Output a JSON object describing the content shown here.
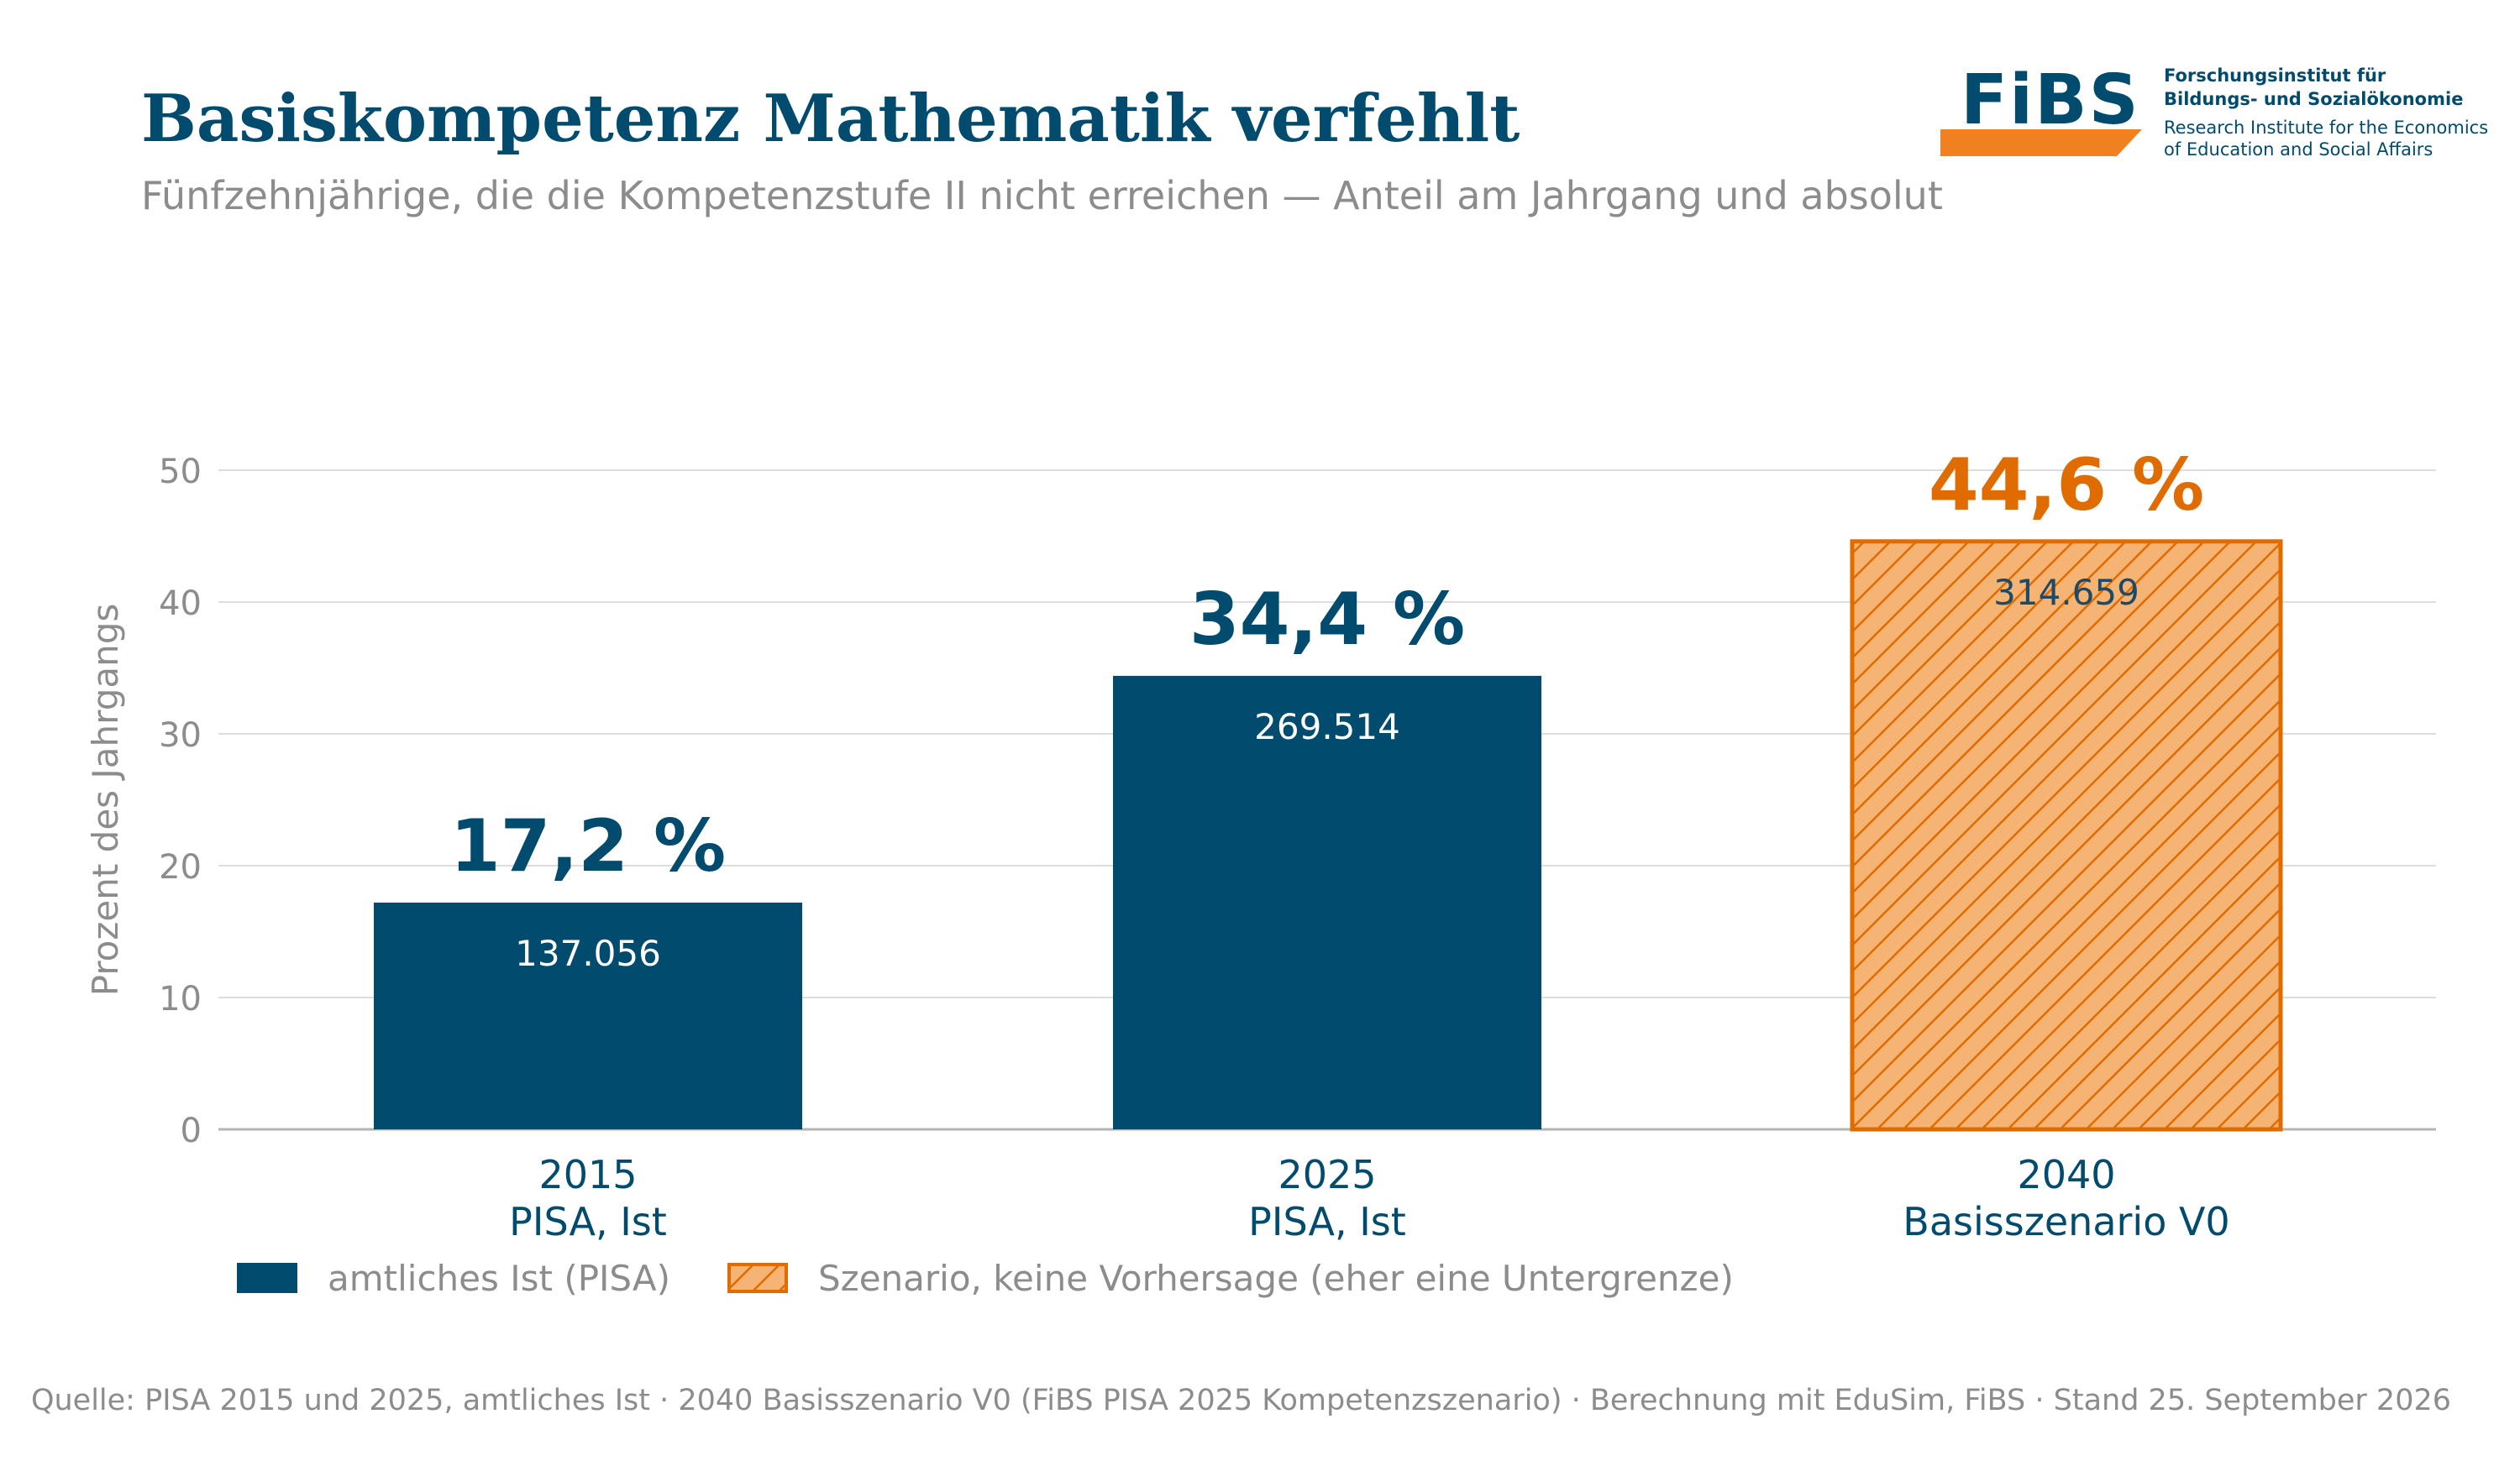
{
  "header": {
    "title": "Basiskompetenz Mathematik verfehlt",
    "subtitle": "Fünfzehnjährige, die die Kompetenzstufe II nicht erreichen — Anteil am Jahrgang und absolut"
  },
  "logo": {
    "wordmark": "FiBS",
    "line1": "Forschungsinstitut für",
    "line2": "Bildungs- und Sozialökonomie",
    "line3": "Research Institute for the Economics",
    "line4": "of Education and Social Affairs",
    "accent_color": "#f08020"
  },
  "chart_data": {
    "type": "bar",
    "ylabel": "Prozent des Jahrgangs",
    "ylim": [
      0,
      50
    ],
    "yticks": [
      0,
      10,
      20,
      30,
      40,
      50
    ],
    "grid": true,
    "categories": [
      {
        "year": "2015",
        "sub": "PISA, Ist"
      },
      {
        "year": "2025",
        "sub": "PISA, Ist"
      },
      {
        "year": "2040",
        "sub": "Basisszenario V0"
      }
    ],
    "values": [
      17.2,
      34.4,
      44.6
    ],
    "value_labels": [
      "17,2 %",
      "34,4 %",
      "44,6 %"
    ],
    "absolute_labels": [
      "137.056",
      "269.514",
      "314.659"
    ],
    "kinds": [
      "actual",
      "actual",
      "scenario"
    ],
    "colors": {
      "actual": "#004b6e",
      "scenario_fill": "#f5b374",
      "scenario_stroke": "#e06c00",
      "scenario_label": "#e06c00",
      "axis_text": "#8c8c8c",
      "category_text": "#004b6e"
    }
  },
  "legend": {
    "actual_label": "amtliches Ist (PISA)",
    "scenario_label": "Szenario, keine Vorhersage (eher eine Untergrenze)"
  },
  "footer": {
    "source": "Quelle: PISA 2015 und 2025, amtliches Ist · 2040 Basisszenario V0 (FiBS PISA 2025 Kompetenzszenario) · Berechnung mit EduSim, FiBS · Stand 25. September 2026"
  }
}
